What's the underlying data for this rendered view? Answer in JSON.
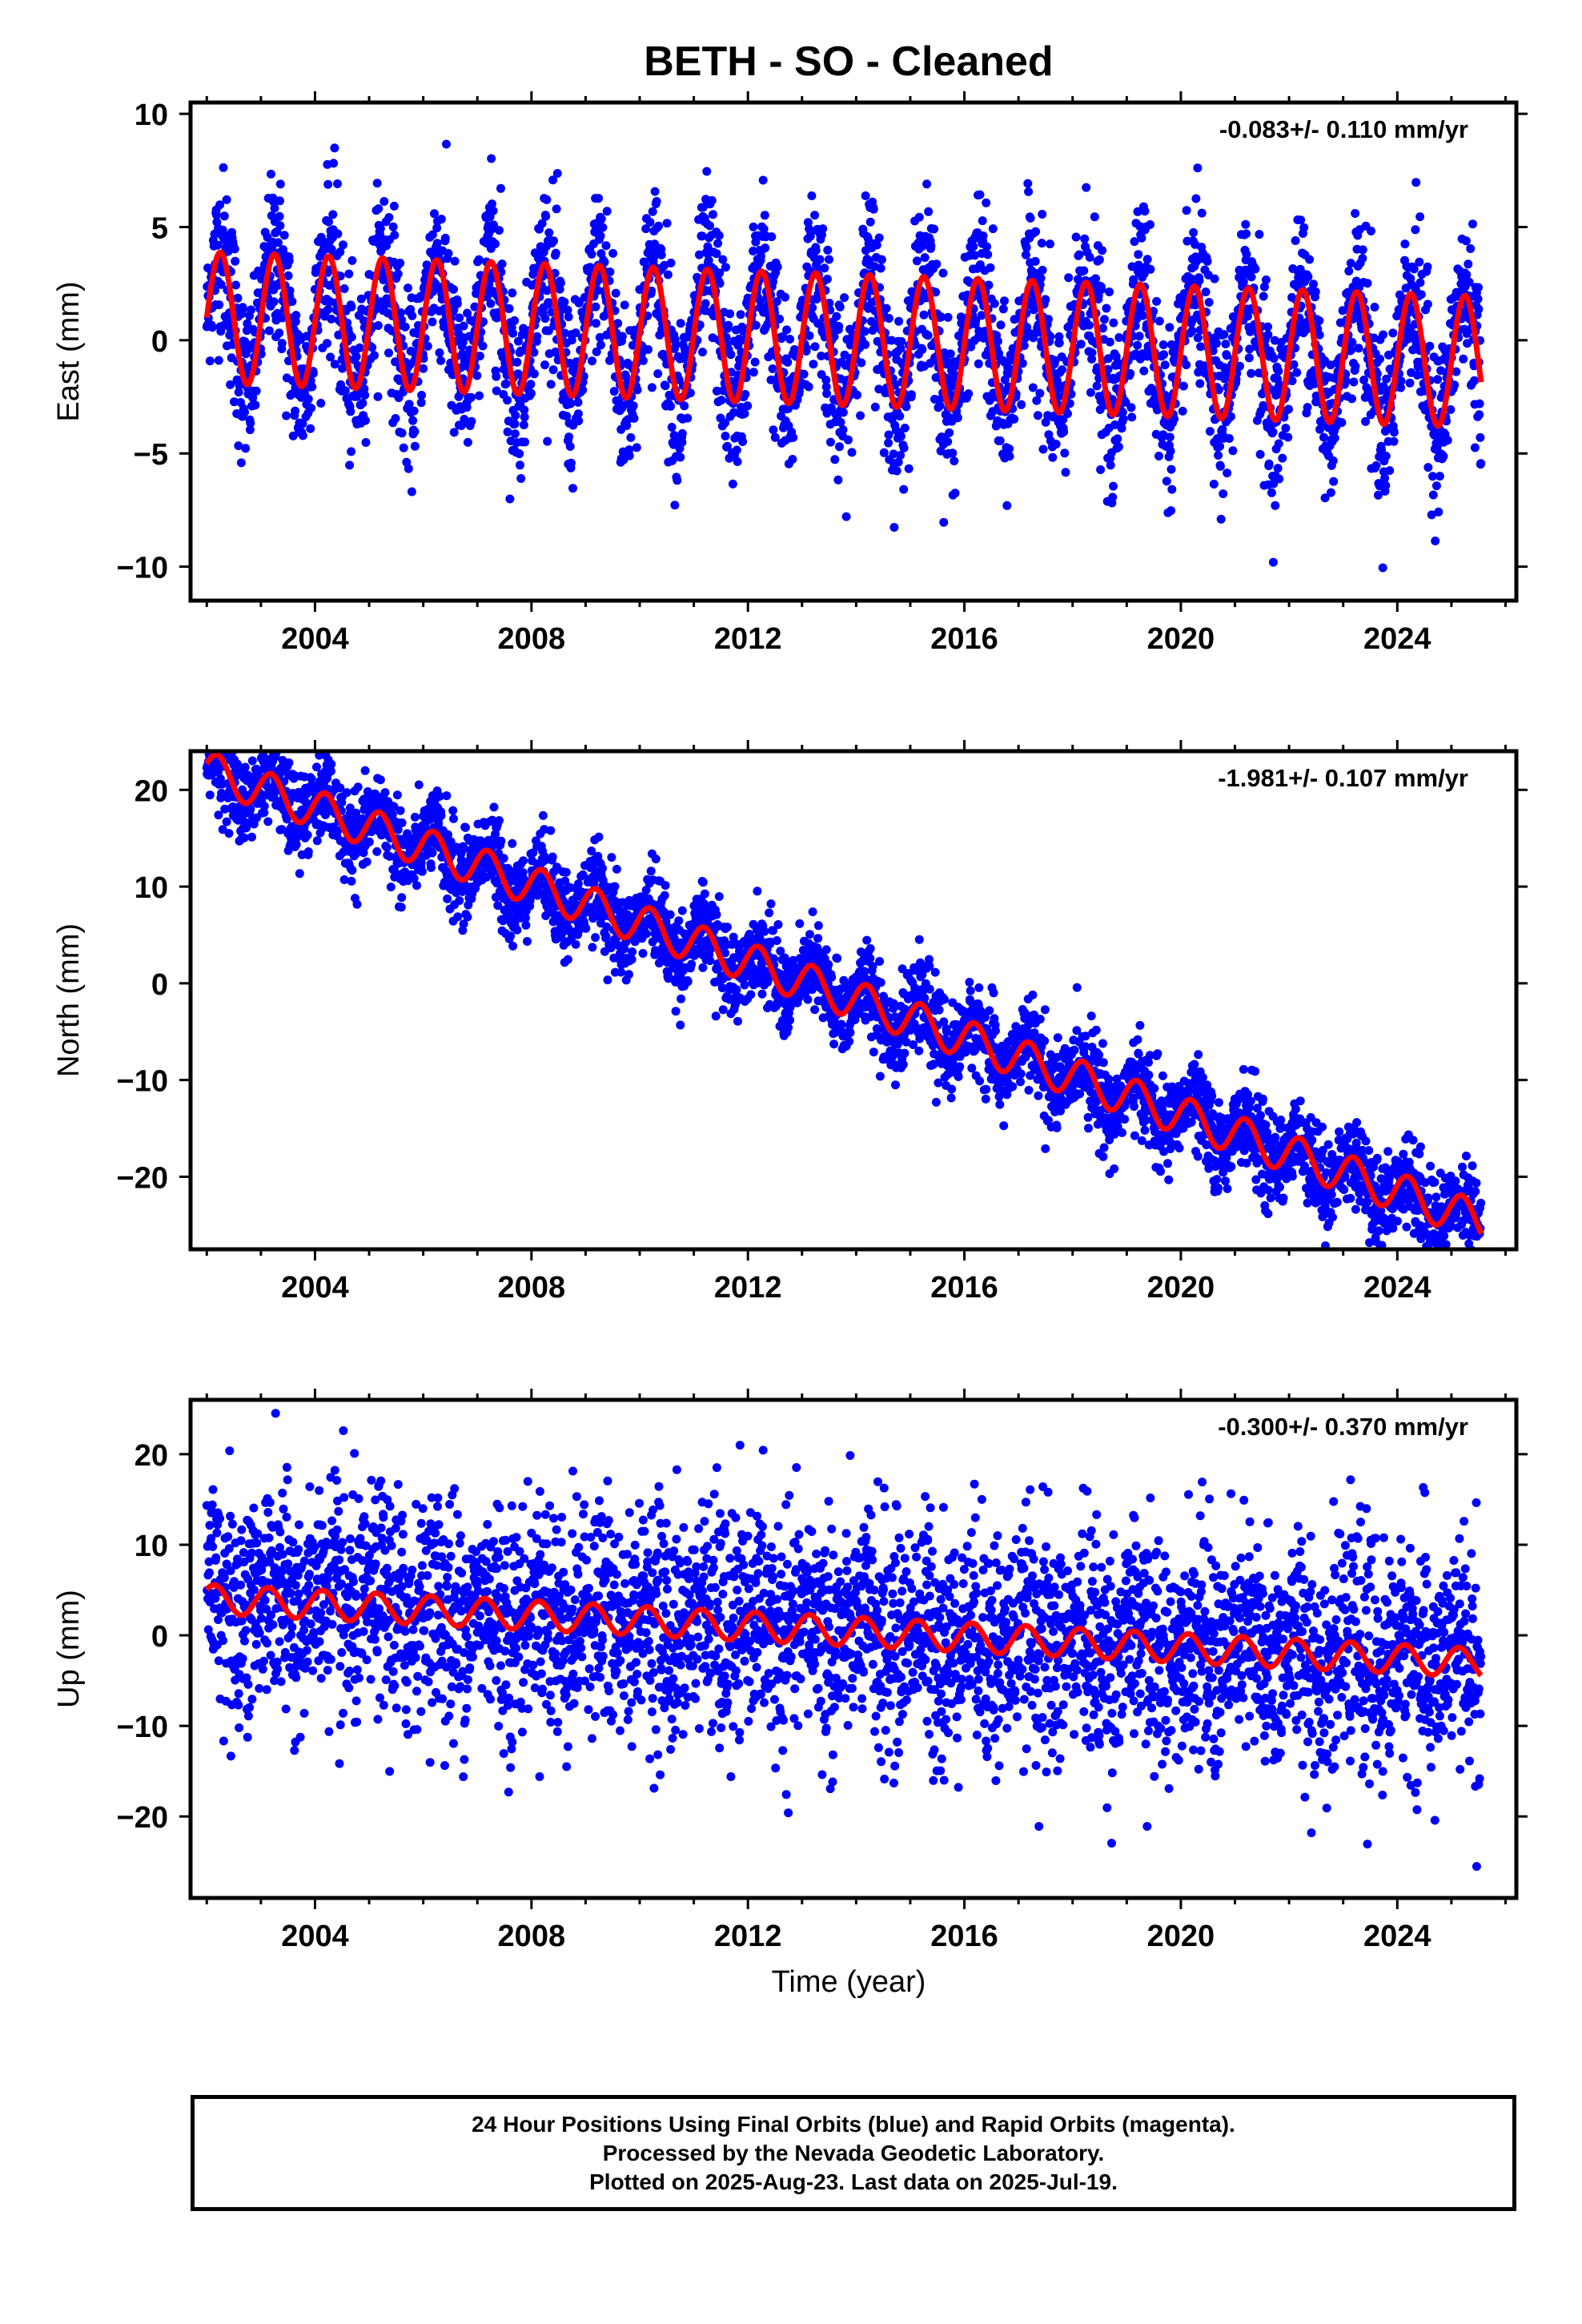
{
  "title": "BETH  - SO - Cleaned",
  "xlabel": "Time (year)",
  "footer": {
    "line1": "24 Hour Positions Using Final Orbits (blue) and Rapid Orbits (magenta).",
    "line2": "Processed by the Nevada Geodetic Laboratory.",
    "line3": "Plotted on 2025-Aug-23. Last data on 2025-Jul-19."
  },
  "colors": {
    "data": "#0000ff",
    "model": "#ff0000",
    "axis": "#000000"
  },
  "chart_data": [
    {
      "type": "scatter",
      "name": "east",
      "ylabel": "East (mm)",
      "rate_label": "-0.083+/- 0.110 mm/yr",
      "xlim": [
        2001.7,
        2026.2
      ],
      "ylim": [
        -11.5,
        10.5
      ],
      "x_ticks": [
        2004,
        2008,
        2012,
        2016,
        2020,
        2024
      ],
      "y_ticks": [
        -10,
        -5,
        0,
        5,
        10
      ],
      "data_range": [
        2002.0,
        2025.55
      ],
      "grid": false,
      "model": {
        "offset": 1.0,
        "rate": -0.083,
        "amp_start": 2.9,
        "amp_end": 2.9,
        "phase": 0.0,
        "noise": 1.3
      }
    },
    {
      "type": "scatter",
      "name": "north",
      "ylabel": "North (mm)",
      "rate_label": "-1.981+/- 0.107 mm/yr",
      "xlim": [
        2001.7,
        2026.2
      ],
      "ylim": [
        -27.5,
        24
      ],
      "x_ticks": [
        2004,
        2008,
        2012,
        2016,
        2020,
        2024
      ],
      "y_ticks": [
        -20,
        -10,
        0,
        10,
        20
      ],
      "data_range": [
        2002.0,
        2025.55
      ],
      "grid": false,
      "model": {
        "offset": 22.0,
        "rate": -1.981,
        "amp_start": 2.0,
        "amp_end": 2.0,
        "phase": 0.35,
        "noise": 1.6
      }
    },
    {
      "type": "scatter",
      "name": "up",
      "ylabel": "Up (mm)",
      "rate_label": "-0.300+/- 0.370 mm/yr",
      "xlim": [
        2001.7,
        2026.2
      ],
      "ylim": [
        -29,
        26
      ],
      "x_ticks": [
        2004,
        2008,
        2012,
        2016,
        2020,
        2024
      ],
      "y_ticks": [
        -20,
        -10,
        0,
        10,
        20
      ],
      "data_range": [
        2002.0,
        2025.55
      ],
      "grid": false,
      "model": {
        "offset": 4.0,
        "rate": -0.3,
        "amp_start": 1.6,
        "amp_end": 1.6,
        "phase": 0.7,
        "noise": 4.5
      }
    }
  ]
}
